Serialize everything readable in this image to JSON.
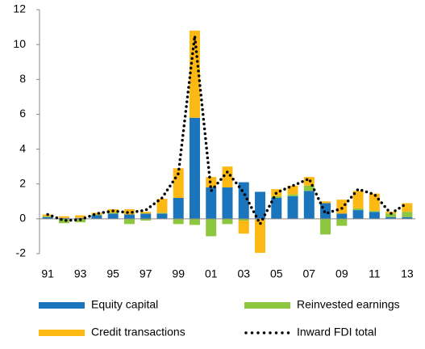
{
  "chart_data": {
    "type": "bar",
    "stacked": true,
    "categories": [
      "91",
      null,
      "93",
      null,
      "95",
      null,
      "97",
      null,
      "99",
      null,
      "01",
      null,
      "03",
      null,
      "05",
      null,
      "07",
      null,
      "09",
      null,
      "11",
      null,
      "13"
    ],
    "series": [
      {
        "name": "Equity capital",
        "color": "#1b75bc",
        "values": [
          0.1,
          0.05,
          0.05,
          0.2,
          0.3,
          0.25,
          0.3,
          0.3,
          1.2,
          5.8,
          1.8,
          1.8,
          2.1,
          1.55,
          1.2,
          1.3,
          1.6,
          0.9,
          0.3,
          0.5,
          0.4,
          0.1,
          0.1
        ]
      },
      {
        "name": "Reinvested earnings",
        "color": "#8dc63f",
        "values": [
          0.05,
          -0.25,
          -0.2,
          0.05,
          0.05,
          -0.3,
          -0.1,
          0.05,
          -0.3,
          -0.35,
          -1.0,
          -0.3,
          -0.1,
          0,
          0.1,
          0.1,
          0.3,
          -0.9,
          -0.4,
          0.1,
          0.05,
          0.2,
          0.3
        ]
      },
      {
        "name": "Credit transactions",
        "color": "#fdb913",
        "values": [
          0.1,
          0.1,
          0.15,
          0.1,
          0.2,
          0.3,
          0.1,
          0.8,
          1.7,
          5.0,
          0.6,
          1.2,
          -0.75,
          -1.95,
          0.4,
          0.5,
          0.5,
          0.1,
          0.8,
          1.0,
          1.0,
          0.1,
          0.5
        ]
      },
      {
        "name": "Inward FDI total",
        "type": "line",
        "color": "#000000",
        "values": [
          0.25,
          -0.1,
          -0.05,
          0.3,
          0.45,
          0.35,
          0.5,
          1.2,
          2.6,
          10.5,
          1.6,
          2.7,
          1.5,
          -0.3,
          1.5,
          1.9,
          2.3,
          0.3,
          0.6,
          1.7,
          1.4,
          0.3,
          0.9
        ]
      }
    ],
    "ylim": [
      -2,
      12
    ],
    "yticks": [
      -2,
      0,
      2,
      4,
      6,
      8,
      10,
      12
    ],
    "grid": false,
    "legend": "bottom"
  }
}
